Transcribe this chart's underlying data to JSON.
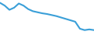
{
  "x": [
    0,
    1,
    2,
    3,
    4,
    5,
    6,
    7,
    8,
    9,
    10,
    11,
    12,
    13,
    14,
    15,
    16,
    17,
    18,
    19,
    20
  ],
  "y": [
    92,
    84,
    72,
    78,
    90,
    84,
    74,
    68,
    65,
    62,
    60,
    57,
    54,
    50,
    46,
    42,
    38,
    18,
    14,
    16,
    14
  ],
  "line_color": "#3a9fd8",
  "bg_color": "#ffffff",
  "linewidth": 1.5,
  "xlim": [
    0,
    20
  ],
  "ylim": [
    0,
    100
  ]
}
